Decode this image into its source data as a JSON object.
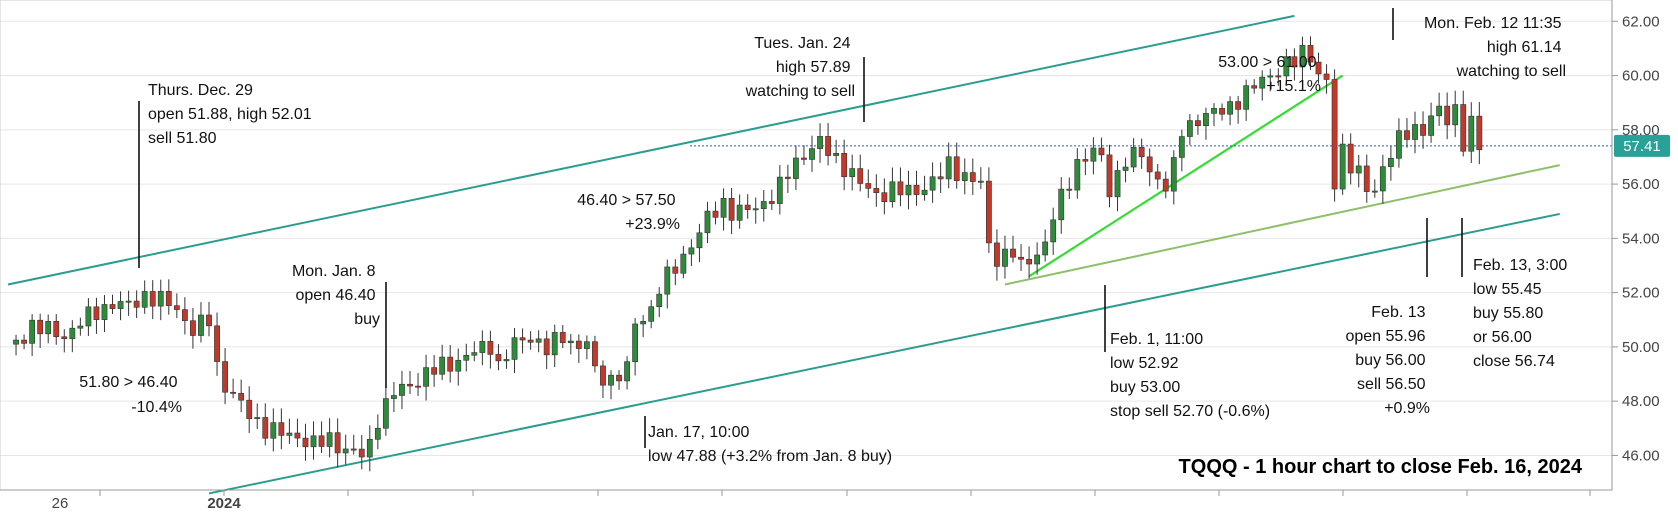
{
  "chart_data": {
    "type": "candlestick",
    "title": "TQQQ - 1 hour chart to close Feb. 16, 2024",
    "y_ticks": [
      "46.00",
      "48.00",
      "50.00",
      "52.00",
      "54.00",
      "56.00",
      "58.00",
      "60.00",
      "62.00"
    ],
    "ylim": [
      44.8,
      62.6
    ],
    "x_ticks": [
      "26",
      "2024"
    ],
    "last_price": "57.41",
    "colors": {
      "up": "#2e8b3a",
      "down": "#c0392b",
      "channel": "#2a9d8f",
      "support": "#8fbf6a",
      "trend": "#33dd33",
      "price_line": "#3355cc",
      "price_label": "#2aa198"
    },
    "price_path": [
      [
        1,
        50.1
      ],
      [
        3,
        50.8
      ],
      [
        5,
        50.6
      ],
      [
        7,
        50.4
      ],
      [
        9,
        50.9
      ],
      [
        11,
        51.3
      ],
      [
        13,
        51.6
      ],
      [
        15,
        51.5
      ],
      [
        17,
        51.9
      ],
      [
        18,
        51.8
      ],
      [
        20,
        51.6
      ],
      [
        21,
        51.4
      ],
      [
        23,
        50.6
      ],
      [
        24,
        50.8
      ],
      [
        25,
        51.0
      ],
      [
        26,
        49.3
      ],
      [
        27,
        48.6
      ],
      [
        28,
        48.2
      ],
      [
        30,
        47.5
      ],
      [
        32,
        47.0
      ],
      [
        34,
        46.8
      ],
      [
        36,
        46.7
      ],
      [
        38,
        46.4
      ],
      [
        40,
        46.6
      ],
      [
        42,
        46.2
      ],
      [
        44,
        46.0
      ],
      [
        45,
        46.4
      ],
      [
        46,
        47.4
      ],
      [
        48,
        48.3
      ],
      [
        50,
        48.6
      ],
      [
        52,
        49.0
      ],
      [
        54,
        49.3
      ],
      [
        56,
        49.5
      ],
      [
        58,
        49.8
      ],
      [
        60,
        50.1
      ],
      [
        61,
        49.3
      ],
      [
        63,
        50.1
      ],
      [
        65,
        50.4
      ],
      [
        67,
        49.9
      ],
      [
        69,
        50.4
      ],
      [
        71,
        50.0
      ],
      [
        72,
        50.2
      ],
      [
        73,
        49.0
      ],
      [
        75,
        48.8
      ],
      [
        77,
        49.2
      ],
      [
        78,
        50.8
      ],
      [
        80,
        51.4
      ],
      [
        81,
        52.2
      ],
      [
        83,
        52.9
      ],
      [
        85,
        53.8
      ],
      [
        87,
        54.7
      ],
      [
        89,
        55.3
      ],
      [
        90,
        55.0
      ],
      [
        92,
        55.0
      ],
      [
        94,
        55.3
      ],
      [
        96,
        55.9
      ],
      [
        98,
        56.8
      ],
      [
        100,
        57.4
      ],
      [
        101,
        57.5
      ],
      [
        103,
        56.9
      ],
      [
        105,
        56.4
      ],
      [
        106,
        56.0
      ],
      [
        108,
        55.6
      ],
      [
        110,
        55.8
      ],
      [
        112,
        55.7
      ],
      [
        114,
        55.9
      ],
      [
        116,
        56.3
      ],
      [
        117,
        56.7
      ],
      [
        119,
        56.3
      ],
      [
        121,
        56.0
      ],
      [
        122,
        53.7
      ],
      [
        123,
        53.3
      ],
      [
        125,
        53.5
      ],
      [
        126,
        52.9
      ],
      [
        127,
        53.2
      ],
      [
        129,
        53.8
      ],
      [
        130,
        54.8
      ],
      [
        132,
        56.1
      ],
      [
        133,
        56.8
      ],
      [
        135,
        57.2
      ],
      [
        136,
        56.9
      ],
      [
        137,
        55.8
      ],
      [
        139,
        56.9
      ],
      [
        141,
        57.1
      ],
      [
        142,
        56.5
      ],
      [
        144,
        55.9
      ],
      [
        145,
        56.6
      ],
      [
        146,
        58.0
      ],
      [
        148,
        58.4
      ],
      [
        150,
        58.6
      ],
      [
        152,
        58.9
      ],
      [
        154,
        59.3
      ],
      [
        156,
        59.9
      ],
      [
        158,
        60.2
      ],
      [
        160,
        60.5
      ],
      [
        161,
        60.9
      ],
      [
        162,
        60.8
      ],
      [
        163,
        60.0
      ],
      [
        164,
        59.7
      ],
      [
        165,
        55.9
      ],
      [
        166,
        57.3
      ],
      [
        167,
        56.8
      ],
      [
        168,
        56.4
      ],
      [
        169,
        55.8
      ],
      [
        170,
        55.6
      ],
      [
        171,
        56.7
      ],
      [
        173,
        57.7
      ],
      [
        175,
        57.9
      ],
      [
        176,
        58.1
      ],
      [
        177,
        58.5
      ],
      [
        178,
        58.8
      ],
      [
        179,
        58.2
      ],
      [
        180,
        58.7
      ],
      [
        181,
        57.6
      ],
      [
        182,
        58.3
      ],
      [
        183,
        57.4
      ]
    ],
    "trendlines": [
      {
        "kind": "channel",
        "from": [
          0,
          52.3
        ],
        "to": [
          160,
          62.2
        ]
      },
      {
        "kind": "channel",
        "from": [
          25,
          44.6
        ],
        "to": [
          193,
          54.9
        ]
      },
      {
        "kind": "support",
        "from": [
          124,
          52.3
        ],
        "to": [
          193,
          56.7
        ]
      },
      {
        "kind": "trend",
        "from": [
          127,
          52.6
        ],
        "to": [
          166,
          60.0
        ]
      }
    ],
    "annotations": [
      {
        "lines": [
          "Thurs. Dec. 29",
          "open 51.88, high 52.01",
          "sell 51.80"
        ]
      },
      {
        "lines": [
          "51.80 > 46.40",
          "-10.4%"
        ]
      },
      {
        "lines": [
          "Mon. Jan. 8",
          "open 46.40",
          "buy"
        ]
      },
      {
        "lines": [
          "Jan. 17, 10:00",
          "low 47.88 (+3.2% from Jan. 8 buy)"
        ]
      },
      {
        "lines": [
          "46.40 > 57.50",
          "+23.9%"
        ]
      },
      {
        "lines": [
          "Tues. Jan. 24",
          "high 57.89",
          "watching to sell"
        ]
      },
      {
        "lines": [
          "Feb. 1, 11:00",
          "low 52.92",
          "buy 53.00",
          "stop sell 52.70 (-0.6%)"
        ]
      },
      {
        "lines": [
          "53.00 > 61.00",
          "+15.1%"
        ]
      },
      {
        "lines": [
          "Mon. Feb. 12 11:35",
          "high 61.14",
          "watching to sell"
        ]
      },
      {
        "lines": [
          "Feb. 13",
          "open 55.96",
          "buy 56.00",
          "sell 56.50",
          "+0.9%"
        ]
      },
      {
        "lines": [
          "Feb. 13, 3:00",
          "low 55.45",
          "buy 55.80",
          "or 56.00",
          "close 56.74"
        ]
      }
    ]
  }
}
